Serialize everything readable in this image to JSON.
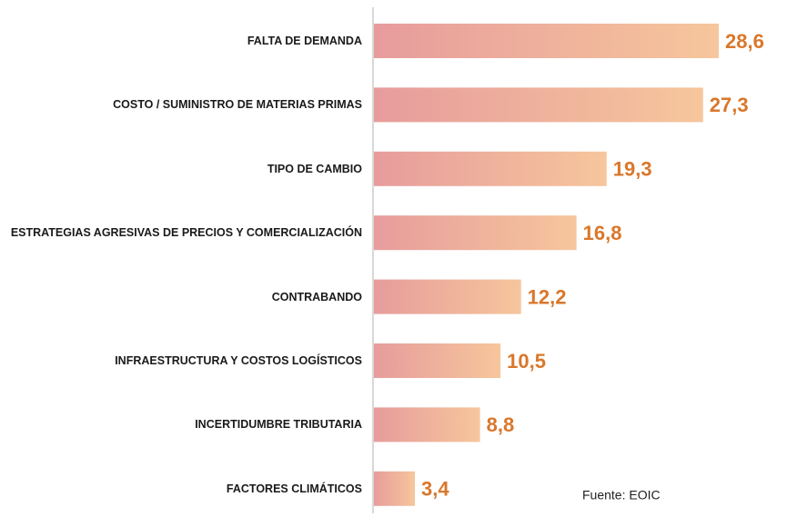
{
  "chart_data": {
    "type": "bar",
    "orientation": "horizontal",
    "categories": [
      "FALTA DE DEMANDA",
      "COSTO / SUMINISTRO DE MATERIAS PRIMAS",
      "TIPO DE CAMBIO",
      "ESTRATEGIAS AGRESIVAS DE PRECIOS Y COMERCIALIZACIÓN",
      "CONTRABANDO",
      "INFRAESTRUCTURA Y COSTOS LOGÍSTICOS",
      "INCERTIDUMBRE TRIBUTARIA",
      "FACTORES CLIMÁTICOS"
    ],
    "values": [
      28.6,
      27.3,
      19.3,
      16.8,
      12.2,
      10.5,
      8.8,
      3.4
    ],
    "value_labels": [
      "28,6",
      "27,3",
      "19,3",
      "16,8",
      "12,2",
      "10,5",
      "8,8",
      "3,4"
    ],
    "color": "url(#g)",
    "source": "Fuente:  EOIC"
  }
}
